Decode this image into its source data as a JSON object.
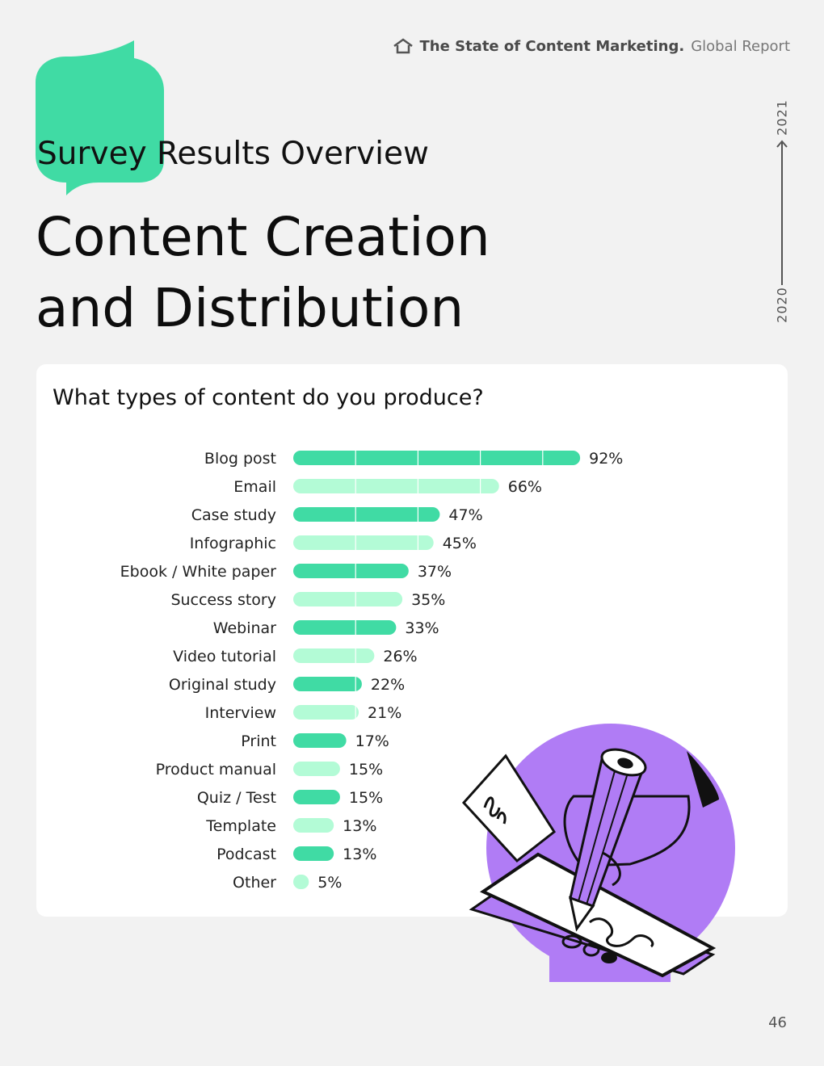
{
  "header": {
    "brand": "The State of Content Marketing.",
    "sub": "Global Report",
    "icon": "home-icon"
  },
  "section_title": "Survey Results Overview",
  "title_line1": "Content Creation",
  "title_line2": "and Distribution",
  "timeline": {
    "from": "2020",
    "to": "2021"
  },
  "page_number": "46",
  "colors": {
    "bar_primary": "#40dba4",
    "bar_secondary": "#b3fbd6",
    "accent_green": "#40dba4",
    "accent_purple": "#b07cf5"
  },
  "chart_data": {
    "type": "bar",
    "orientation": "horizontal",
    "title": "What types of content do you produce?",
    "xlabel": "",
    "ylabel": "",
    "xlim": [
      0,
      100
    ],
    "categories": [
      "Blog post",
      "Email",
      "Case study",
      "Infographic",
      "Ebook / White paper",
      "Success story",
      "Webinar",
      "Video tutorial",
      "Original study",
      "Interview",
      "Print",
      "Product manual",
      "Quiz / Test",
      "Template",
      "Podcast",
      "Other"
    ],
    "values": [
      92,
      66,
      47,
      45,
      37,
      35,
      33,
      26,
      22,
      21,
      17,
      15,
      15,
      13,
      13,
      5
    ],
    "value_labels": [
      "92%",
      "66%",
      "47%",
      "45%",
      "37%",
      "35%",
      "33%",
      "26%",
      "22%",
      "21%",
      "17%",
      "15%",
      "15%",
      "13%",
      "13%",
      "5%"
    ]
  }
}
